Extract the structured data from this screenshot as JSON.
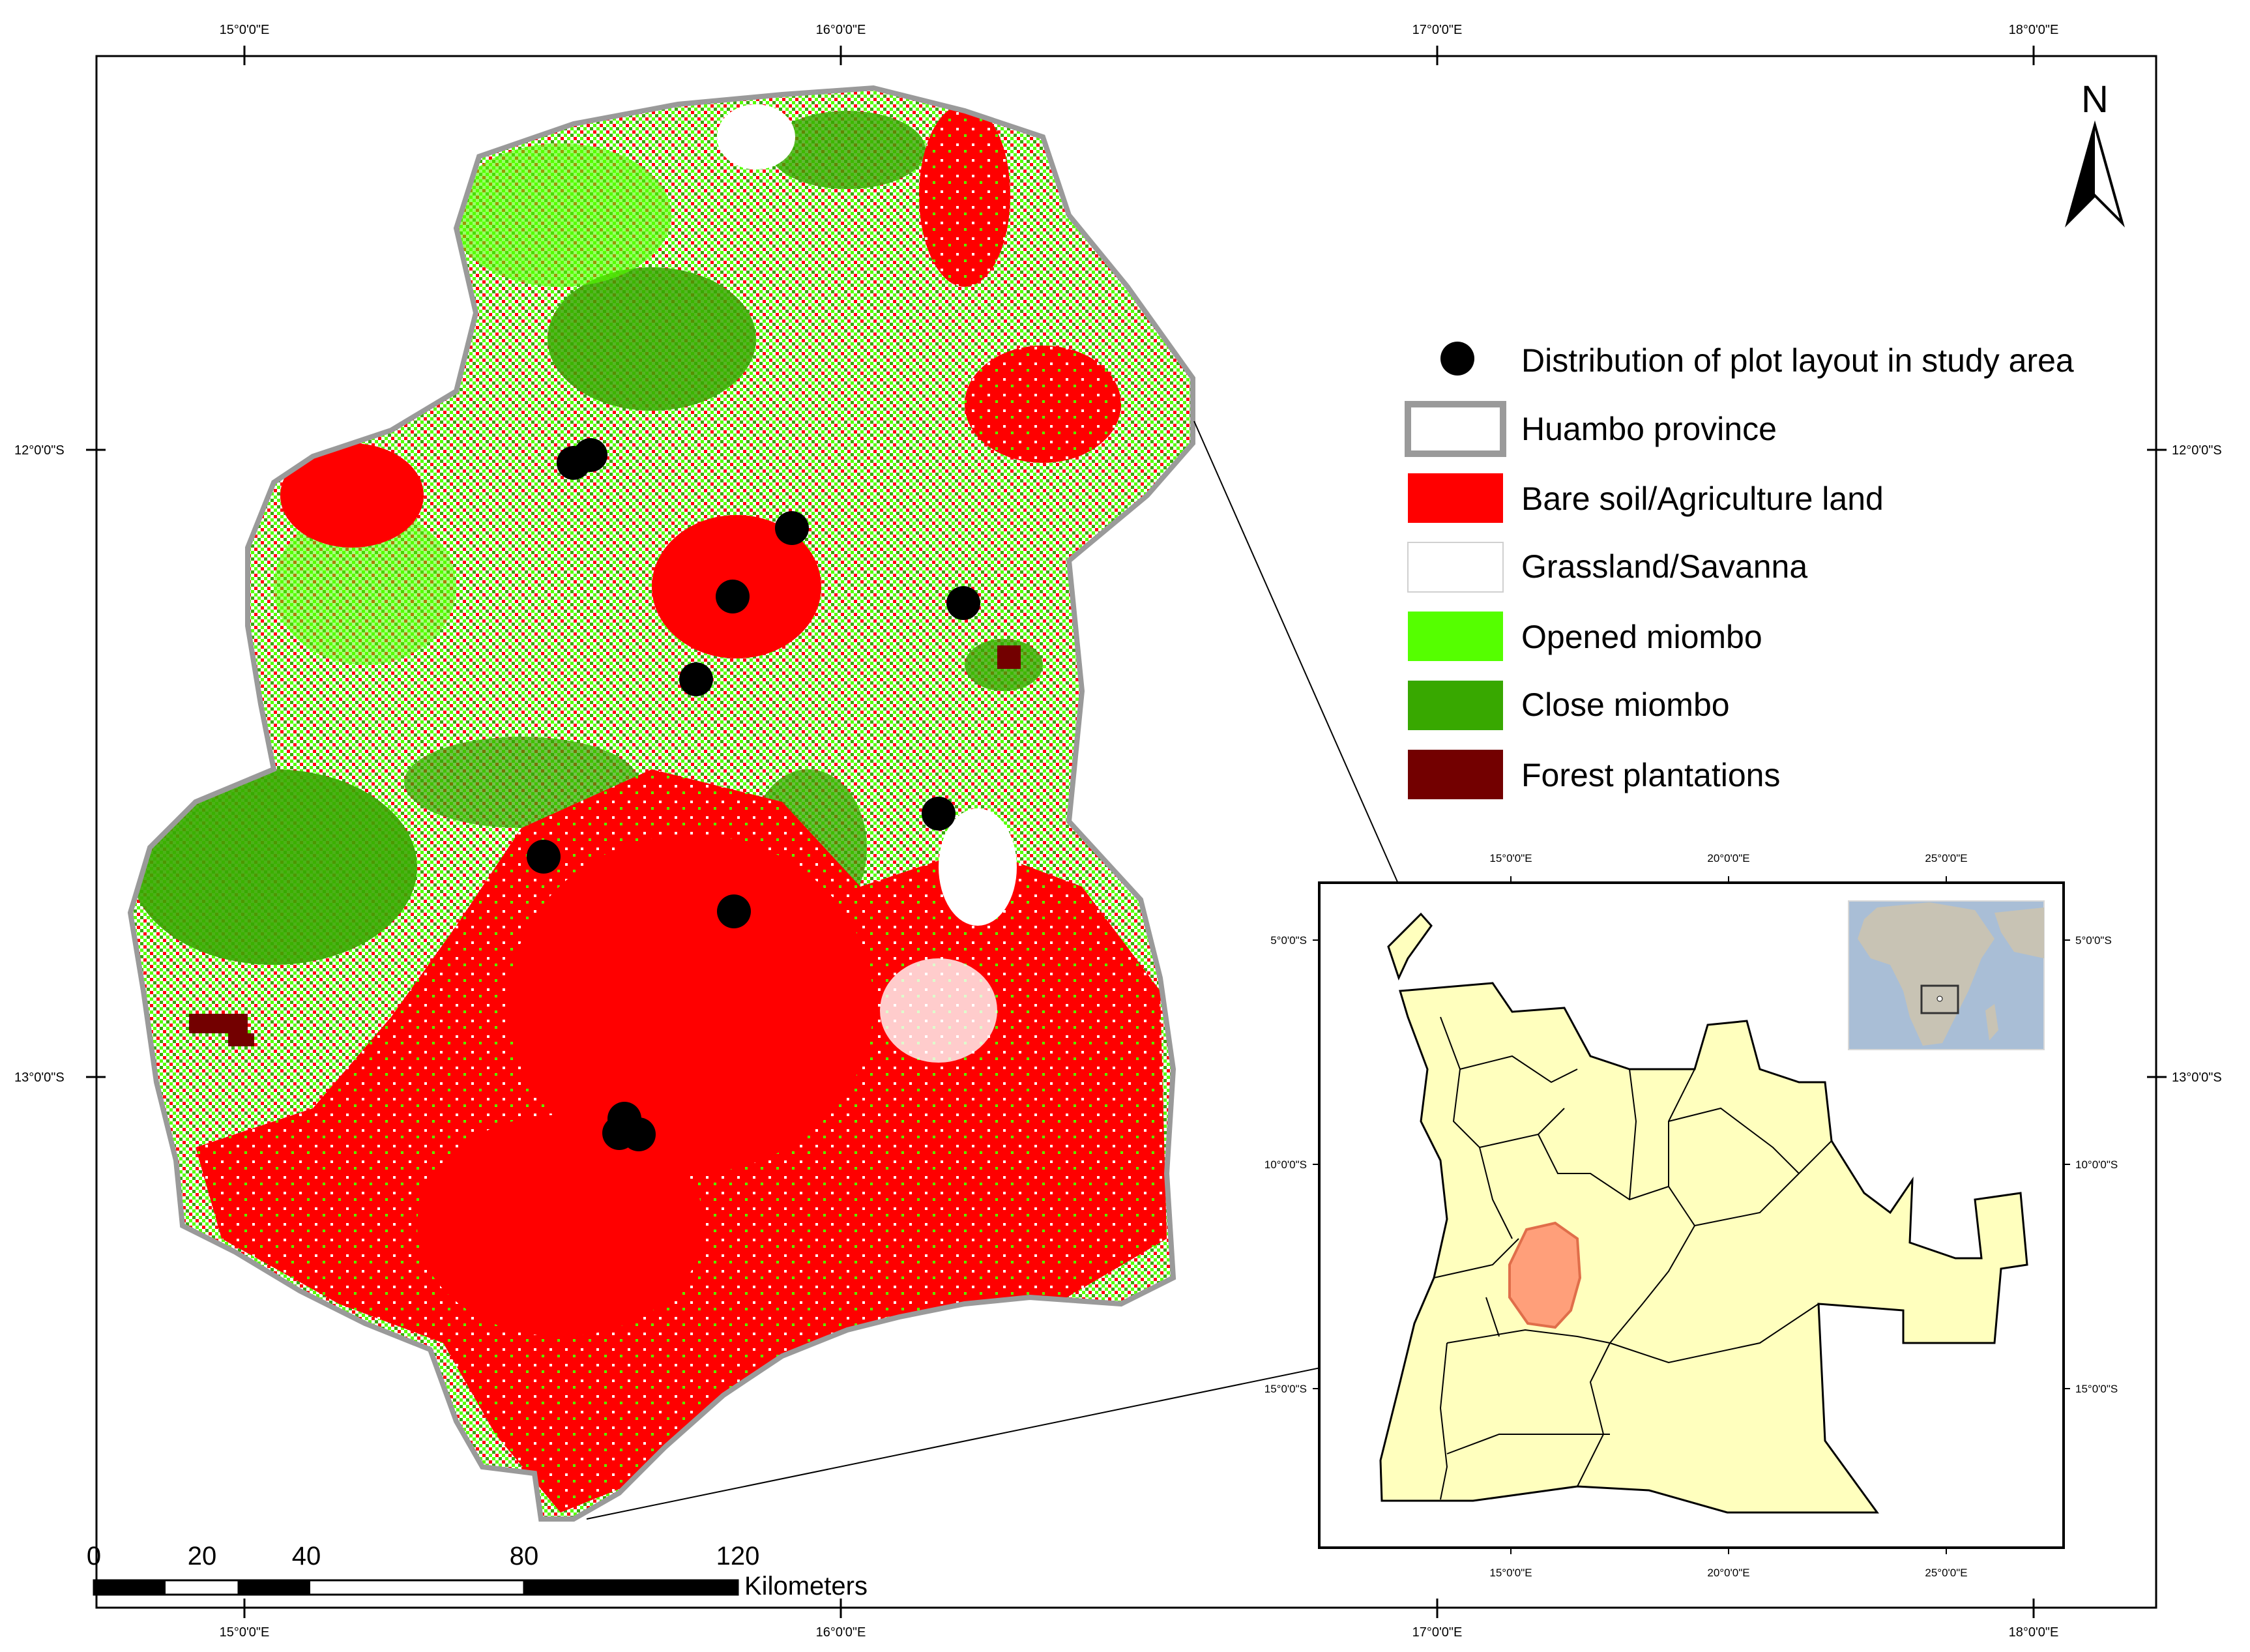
{
  "graticule": {
    "top": [
      "15°0'0\"E",
      "16°0'0\"E",
      "17°0'0\"E",
      "18°0'0\"E"
    ],
    "bottom": [
      "15°0'0\"E",
      "16°0'0\"E",
      "17°0'0\"E",
      "18°0'0\"E"
    ],
    "left": [
      "12°0'0\"S",
      "13°0'0\"S"
    ],
    "right": [
      "12°0'0\"S",
      "13°0'0\"S"
    ]
  },
  "north_arrow": {
    "label": "N"
  },
  "legend": {
    "items": [
      {
        "label": "Distribution of plot layout in study area",
        "symbol": "dot",
        "color": "#000000"
      },
      {
        "label": "Huambo province",
        "symbol": "outline",
        "color": "#9a9a9a"
      },
      {
        "label": "Bare soil/Agriculture land",
        "symbol": "fill",
        "color": "#ff0000"
      },
      {
        "label": "Grassland/Savanna",
        "symbol": "fill",
        "color": "#ffffff"
      },
      {
        "label": "Opened miombo",
        "symbol": "fill",
        "color": "#55ff00"
      },
      {
        "label": "Close miombo",
        "symbol": "fill",
        "color": "#38a800"
      },
      {
        "label": "Forest plantations",
        "symbol": "fill",
        "color": "#730000"
      }
    ]
  },
  "scale_bar": {
    "ticks": [
      "0",
      "20",
      "40",
      "80",
      "120"
    ],
    "unit": "Kilometers"
  },
  "inset": {
    "top": [
      "15°0'0\"E",
      "20°0'0\"E",
      "25°0'0\"E"
    ],
    "bottom": [
      "15°0'0\"E",
      "20°0'0\"E",
      "25°0'0\"E"
    ],
    "left": [
      "5°0'0\"S",
      "10°0'0\"S",
      "15°0'0\"S"
    ],
    "right": [
      "5°0'0\"S",
      "10°0'0\"S",
      "15°0'0\"S"
    ],
    "highlight_color": "#ff9f7a",
    "country_color": "#ffffbe"
  },
  "colors": {
    "bare": "#ff0000",
    "grass": "#ffffff",
    "opened": "#55ff00",
    "close": "#38a800",
    "plantation": "#730000",
    "boundary": "#9a9a9a"
  }
}
